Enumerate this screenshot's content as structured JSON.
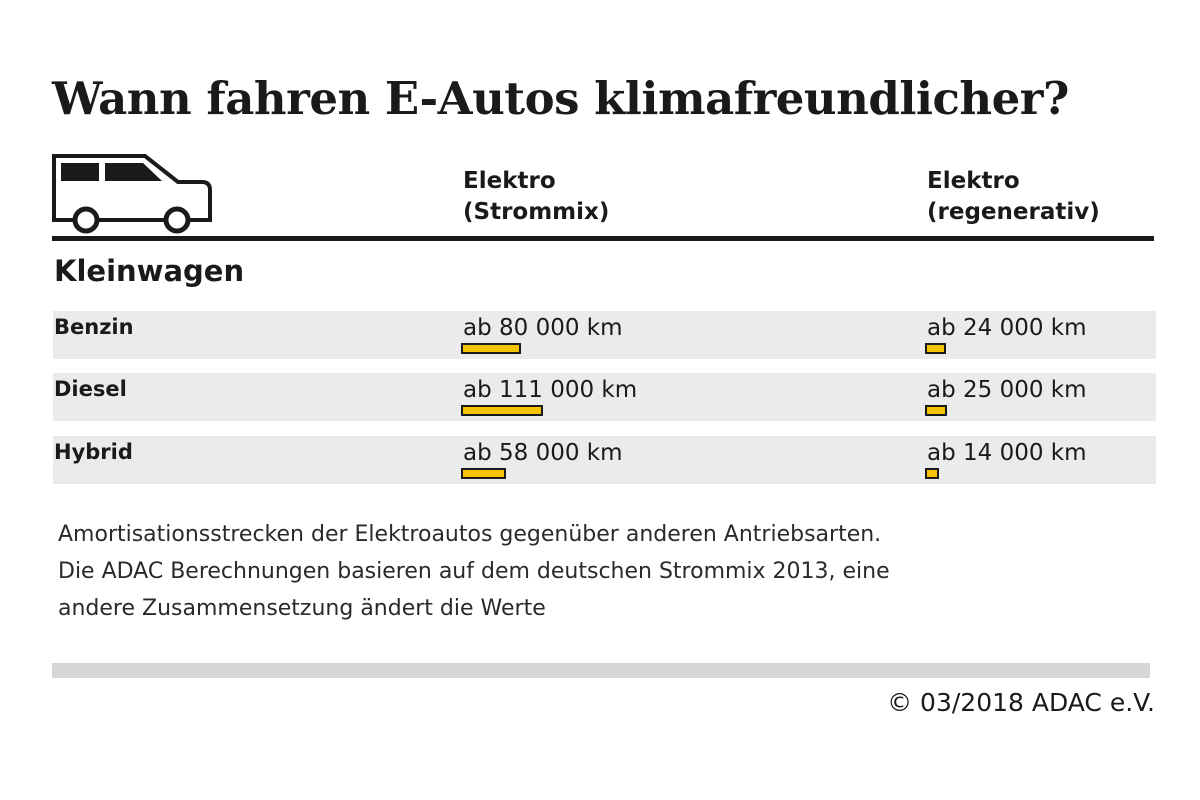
{
  "chart_data": {
    "type": "bar-table",
    "title": "Wann fahren E-Autos klimafreundlicher?",
    "section": "Kleinwagen",
    "categories": [
      "Benzin",
      "Diesel",
      "Hybrid"
    ],
    "series": [
      {
        "name": "Elektro (Strommix)",
        "color": "#f5c400",
        "values": [
          80000,
          111000,
          58000
        ],
        "value_labels": [
          "ab 80 000 km",
          "ab 111 000 km",
          "ab 58 000 km"
        ]
      },
      {
        "name": "Elektro (regenerativ)",
        "color": "#f5c400",
        "values": [
          24000,
          25000,
          14000
        ],
        "value_labels": [
          "ab 24 000 km",
          "ab 25 000 km",
          "ab 14 000 km"
        ]
      }
    ],
    "note": [
      "Amortisationsstrecken der Elektroautos gegenüber anderen Antriebsarten.",
      "Die ADAC Berechnungen basieren auf dem deutschen Strommix 2013, eine",
      "andere Zusammensetzung ändert die Werte"
    ],
    "source": "© 03/2018 ADAC e.V."
  }
}
